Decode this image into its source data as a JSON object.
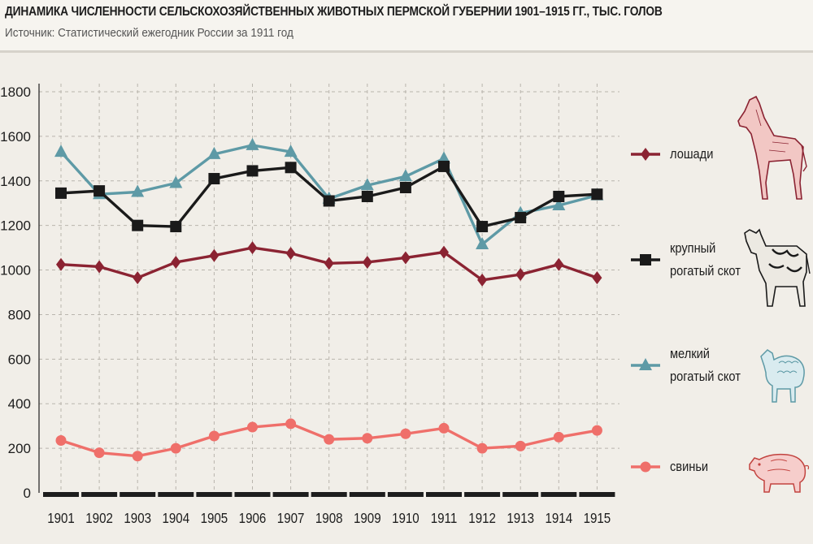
{
  "header": {
    "title": "ДИНАМИКА ЧИСЛЕННОСТИ СЕЛЬСКОХОЗЯЙСТВЕННЫХ ЖИВОТНЫХ ПЕРМСКОЙ ГУБЕРНИИ 1901–1915 ГГ., ТЫС. ГОЛОВ",
    "source": "Источник: Статистический ежегодник России за 1911 год"
  },
  "chart_data": {
    "type": "line",
    "title": "ДИНАМИКА ЧИСЛЕННОСТИ СЕЛЬСКОХОЗЯЙСТВЕННЫХ ЖИВОТНЫХ ПЕРМСКОЙ ГУБЕРНИИ 1901–1915 ГГ., ТЫС. ГОЛОВ",
    "subtitle": "Источник: Статистический ежегодник России за 1911 год",
    "x": [
      1901,
      1902,
      1903,
      1904,
      1905,
      1906,
      1907,
      1908,
      1909,
      1910,
      1911,
      1912,
      1913,
      1914,
      1915
    ],
    "x_tick_labels": [
      "1901",
      "1902",
      "1903",
      "1904",
      "1905",
      "1906",
      "1907",
      "1908",
      "1909",
      "1910",
      "1911",
      "1912",
      "1913",
      "1914",
      "1915"
    ],
    "y_ticks": [
      0,
      200,
      400,
      600,
      800,
      1000,
      1200,
      1400,
      1600,
      1800
    ],
    "ylim": [
      0,
      1800
    ],
    "grid": "dashed",
    "legend_position": "right",
    "series": [
      {
        "name": "лошади",
        "lines": [
          "лошади"
        ],
        "color": "#8b2332",
        "marker": "diamond",
        "values": [
          1025,
          1015,
          965,
          1035,
          1065,
          1100,
          1075,
          1030,
          1035,
          1055,
          1080,
          955,
          980,
          1025,
          965
        ]
      },
      {
        "name": "крупный рогатый скот",
        "lines": [
          "крупный",
          "рогатый скот"
        ],
        "color": "#1a1a1a",
        "marker": "square",
        "values": [
          1345,
          1355,
          1200,
          1195,
          1410,
          1445,
          1460,
          1310,
          1330,
          1370,
          1465,
          1195,
          1235,
          1330,
          1340
        ]
      },
      {
        "name": "мелкий рогатый скот",
        "lines": [
          "мелкий",
          "рогатый скот"
        ],
        "color": "#5e9aa6",
        "marker": "triangle",
        "values": [
          1530,
          1340,
          1350,
          1390,
          1520,
          1560,
          1530,
          1320,
          1380,
          1420,
          1500,
          1115,
          1255,
          1290,
          1335
        ]
      },
      {
        "name": "свиньи",
        "lines": [
          "свиньи"
        ],
        "color": "#ef6f6a",
        "marker": "circle",
        "values": [
          235,
          180,
          165,
          200,
          255,
          295,
          310,
          240,
          245,
          265,
          290,
          200,
          210,
          250,
          280
        ]
      }
    ],
    "animal_icons": [
      "horse-icon",
      "cow-icon",
      "sheep-icon",
      "pig-icon"
    ]
  }
}
